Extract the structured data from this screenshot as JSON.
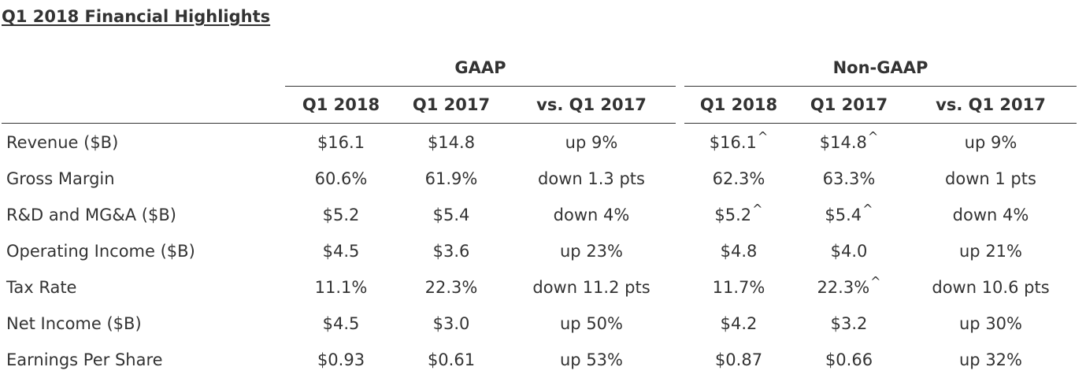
{
  "title": "Q1 2018 Financial Highlights",
  "groups": {
    "gaap": "GAAP",
    "non_gaap": "Non-GAAP"
  },
  "columns": [
    "Q1 2018",
    "Q1 2017",
    "vs. Q1 2017",
    "Q1 2018",
    "Q1 2017",
    "vs. Q1 2017"
  ],
  "rows": [
    {
      "label": "Revenue ($B)",
      "cells": [
        "$16.1",
        "$14.8",
        "up 9%",
        "$16.1",
        "$14.8",
        "up 9%"
      ],
      "marks": [
        "",
        "",
        "",
        "^",
        "^",
        ""
      ]
    },
    {
      "label": "Gross Margin",
      "cells": [
        "60.6%",
        "61.9%",
        "down 1.3 pts",
        "62.3%",
        "63.3%",
        "down 1 pts"
      ],
      "marks": [
        "",
        "",
        "",
        "",
        "",
        ""
      ]
    },
    {
      "label": "R&D and MG&A ($B)",
      "cells": [
        "$5.2",
        "$5.4",
        "down 4%",
        "$5.2",
        "$5.4",
        "down 4%"
      ],
      "marks": [
        "",
        "",
        "",
        "^",
        "^",
        ""
      ]
    },
    {
      "label": "Operating Income ($B)",
      "cells": [
        "$4.5",
        "$3.6",
        "up 23%",
        "$4.8",
        "$4.0",
        "up 21%"
      ],
      "marks": [
        "",
        "",
        "",
        "",
        "",
        ""
      ]
    },
    {
      "label": "Tax Rate",
      "cells": [
        "11.1%",
        "22.3%",
        "down 11.2 pts",
        "11.7%",
        "22.3%",
        "down 10.6 pts"
      ],
      "marks": [
        "",
        "",
        "",
        "",
        "^",
        ""
      ]
    },
    {
      "label": "Net Income ($B)",
      "cells": [
        "$4.5",
        "$3.0",
        "up 50%",
        "$4.2",
        "$3.2",
        "up 30%"
      ],
      "marks": [
        "",
        "",
        "",
        "",
        "",
        ""
      ]
    },
    {
      "label": "Earnings Per Share",
      "cells": [
        "$0.93",
        "$0.61",
        "up 53%",
        "$0.87",
        "$0.66",
        "up 32%"
      ],
      "marks": [
        "",
        "",
        "",
        "",
        "",
        ""
      ]
    }
  ]
}
